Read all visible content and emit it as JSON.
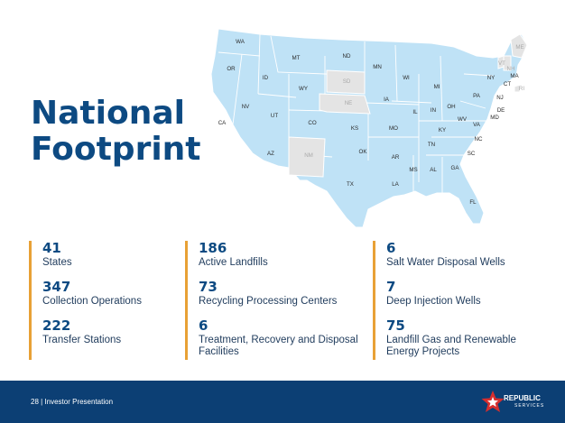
{
  "title": {
    "line1": "National",
    "line2": "Footprint"
  },
  "map": {
    "states": [
      {
        "abbr": "WA",
        "status": "served"
      },
      {
        "abbr": "OR",
        "status": "served"
      },
      {
        "abbr": "CA",
        "status": "served"
      },
      {
        "abbr": "ID",
        "status": "served"
      },
      {
        "abbr": "NV",
        "status": "served"
      },
      {
        "abbr": "AZ",
        "status": "served"
      },
      {
        "abbr": "MT",
        "status": "served"
      },
      {
        "abbr": "WY",
        "status": "served"
      },
      {
        "abbr": "UT",
        "status": "served"
      },
      {
        "abbr": "CO",
        "status": "served"
      },
      {
        "abbr": "NM",
        "status": "not-served"
      },
      {
        "abbr": "ND",
        "status": "served"
      },
      {
        "abbr": "SD",
        "status": "not-served"
      },
      {
        "abbr": "NE",
        "status": "not-served"
      },
      {
        "abbr": "KS",
        "status": "served"
      },
      {
        "abbr": "OK",
        "status": "served"
      },
      {
        "abbr": "TX",
        "status": "served"
      },
      {
        "abbr": "MN",
        "status": "served"
      },
      {
        "abbr": "IA",
        "status": "served"
      },
      {
        "abbr": "MO",
        "status": "served"
      },
      {
        "abbr": "AR",
        "status": "served"
      },
      {
        "abbr": "LA",
        "status": "served"
      },
      {
        "abbr": "WI",
        "status": "served"
      },
      {
        "abbr": "IL",
        "status": "served"
      },
      {
        "abbr": "MS",
        "status": "served"
      },
      {
        "abbr": "AL",
        "status": "served"
      },
      {
        "abbr": "TN",
        "status": "served"
      },
      {
        "abbr": "KY",
        "status": "served"
      },
      {
        "abbr": "IN",
        "status": "served"
      },
      {
        "abbr": "MI",
        "status": "served"
      },
      {
        "abbr": "OH",
        "status": "served"
      },
      {
        "abbr": "GA",
        "status": "served"
      },
      {
        "abbr": "FL",
        "status": "served"
      },
      {
        "abbr": "SC",
        "status": "served"
      },
      {
        "abbr": "NC",
        "status": "served"
      },
      {
        "abbr": "VA",
        "status": "served"
      },
      {
        "abbr": "WV",
        "status": "served"
      },
      {
        "abbr": "PA",
        "status": "served"
      },
      {
        "abbr": "NY",
        "status": "served"
      },
      {
        "abbr": "NJ",
        "status": "served"
      },
      {
        "abbr": "DE",
        "status": "served"
      },
      {
        "abbr": "MD",
        "status": "served"
      },
      {
        "abbr": "CT",
        "status": "served"
      },
      {
        "abbr": "MA",
        "status": "served"
      },
      {
        "abbr": "RI",
        "status": "not-served"
      },
      {
        "abbr": "VT",
        "status": "not-served"
      },
      {
        "abbr": "NH",
        "status": "not-served"
      },
      {
        "abbr": "ME",
        "status": "not-served"
      }
    ],
    "colors": {
      "served": "#bfe2f6",
      "not_served": "#e4e4e4",
      "border": "#ffffff",
      "label": "#2b2b2b",
      "label_muted": "#a9a9a9"
    }
  },
  "stats": {
    "col1": [
      {
        "num": "41",
        "label": "States"
      },
      {
        "num": "347",
        "label": "Collection Operations"
      },
      {
        "num": "222",
        "label": "Transfer Stations"
      }
    ],
    "col2": [
      {
        "num": "186",
        "label": "Active Landfills"
      },
      {
        "num": "73",
        "label": "Recycling Processing Centers"
      },
      {
        "num": "6",
        "label": "Treatment, Recovery and Disposal Facilities"
      }
    ],
    "col3": [
      {
        "num": "6",
        "label": "Salt Water Disposal Wells"
      },
      {
        "num": "7",
        "label": "Deep Injection Wells"
      },
      {
        "num": "75",
        "label": "Landfill Gas and Renewable Energy Projects"
      }
    ]
  },
  "footer": {
    "text": "28 | Investor Presentation"
  },
  "logo": {
    "name": "REPUBLIC",
    "sub": "SERVICES"
  },
  "colors": {
    "title": "#0d4a82",
    "accent": "#e8a136",
    "footer_bg": "#0c3f74",
    "logo_red": "#d62e2e"
  }
}
